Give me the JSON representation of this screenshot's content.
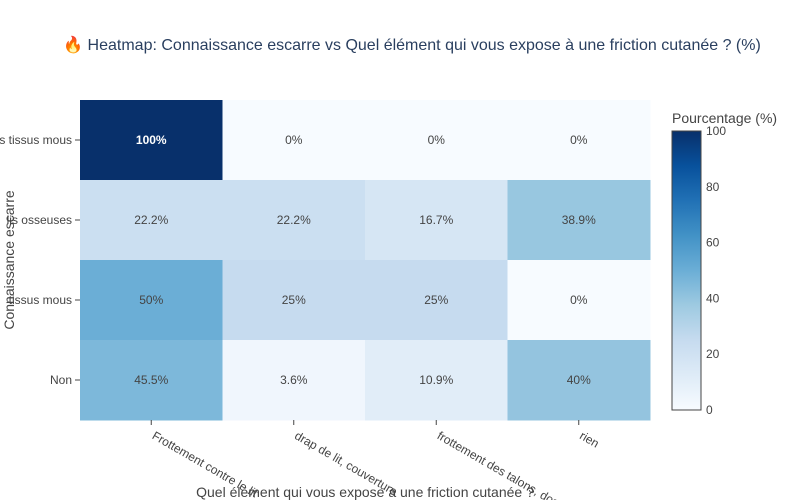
{
  "chart_data": {
    "type": "heatmap",
    "title": "🔥 Heatmap: Connaissance escarre vs Quel élément qui vous expose à une friction cutanée ? (%)",
    "xlabel": "Quel élément qui vous expose à une friction cutanée ?",
    "ylabel": "Connaissance escarre",
    "x_categories": [
      "Frottement contre le lit",
      "drap de lit, couverture",
      "frottement des talons, dos",
      "rien"
    ],
    "y_categories": [
      "Lésion des tissus mous",
      "Lésion des saillies osseuses",
      "Lésion cutanée et des tissus mous",
      "Non"
    ],
    "y_display": [
      "s tissus mous",
      "lis osseuses",
      "tissus mous",
      "Non"
    ],
    "values": [
      [
        100,
        0,
        0,
        0
      ],
      [
        22.2,
        22.2,
        16.7,
        38.9
      ],
      [
        50,
        25,
        25,
        0
      ],
      [
        45.5,
        3.6,
        10.9,
        40
      ]
    ],
    "labels": [
      [
        "100%",
        "0%",
        "0%",
        "0%"
      ],
      [
        "22.2%",
        "22.2%",
        "16.7%",
        "38.9%"
      ],
      [
        "50%",
        "25%",
        "25%",
        "0%"
      ],
      [
        "45.5%",
        "3.6%",
        "10.9%",
        "40%"
      ]
    ],
    "colorbar": {
      "title": "Pourcentage (%)",
      "range": [
        0,
        100
      ],
      "ticks": [
        "0",
        "20",
        "40",
        "60",
        "80",
        "100"
      ]
    },
    "colorscale": "Blues"
  }
}
